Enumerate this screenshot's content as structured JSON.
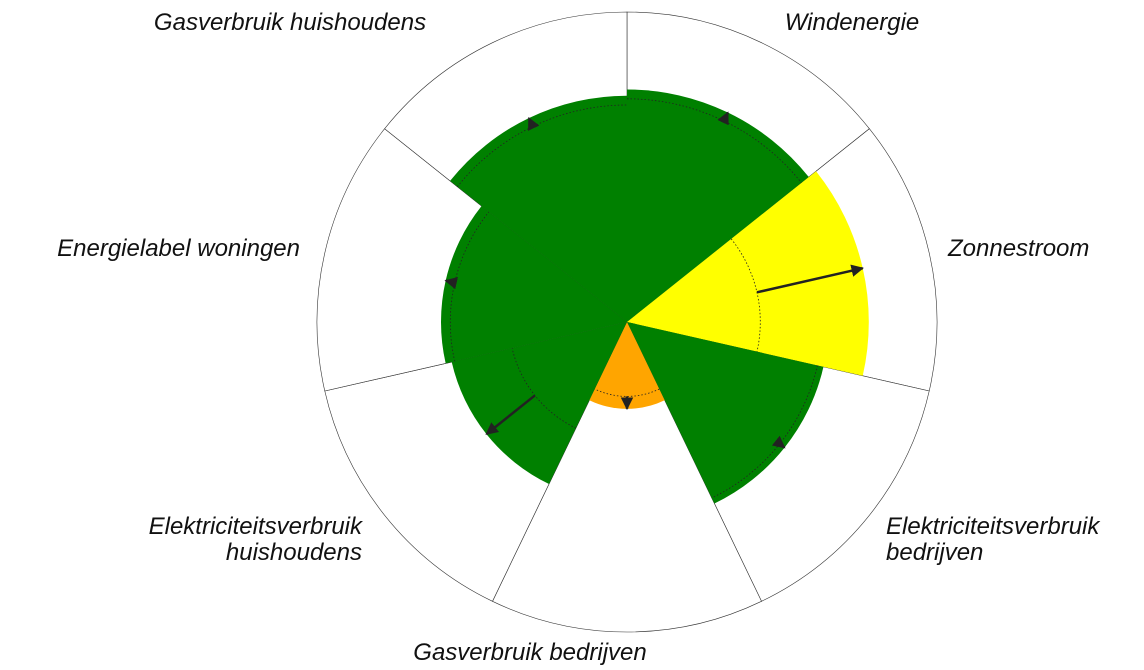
{
  "chart_data": {
    "type": "polar",
    "categories": [
      "Windenergie",
      "Zonnestroom",
      "Elektriciteitsverbruik bedrijven",
      "Gasverbruik bedrijven",
      "Elektriciteitsverbruik huishoudens",
      "Energielabel woningen",
      "Gasverbruik huishoudens"
    ],
    "values": [
      0.75,
      0.78,
      0.65,
      0.28,
      0.58,
      0.6,
      0.73
    ],
    "previous": [
      0.72,
      0.43,
      0.63,
      0.24,
      0.38,
      0.57,
      0.7
    ],
    "colors": [
      "#008000",
      "#ffff00",
      "#008000",
      "#ffa500",
      "#008000",
      "#008000",
      "#008000"
    ],
    "rlim": [
      0,
      1
    ]
  }
}
